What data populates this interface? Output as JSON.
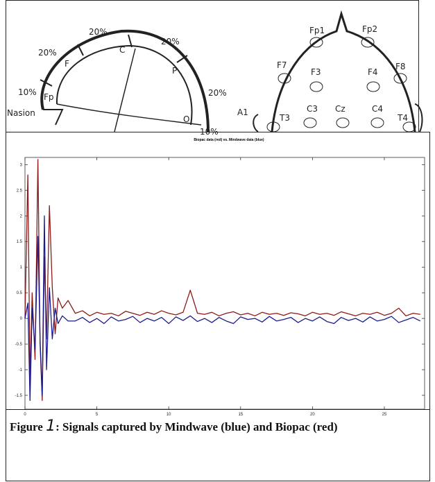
{
  "diagram": {
    "side_labels": [
      "20%",
      "20%",
      "20%",
      "F",
      "C",
      "P",
      "20%",
      "10%",
      "Fp",
      "Nasion",
      "O",
      "10%"
    ],
    "electrodes": [
      "Fp1",
      "Fp2",
      "F7",
      "F3",
      "F4",
      "F8",
      "A1",
      "T3",
      "C3",
      "Cz",
      "C4",
      "T4"
    ]
  },
  "chart_data": {
    "type": "line",
    "title": "Biopac data (red) vs. Mindwave data (blue)",
    "x": [
      0,
      0.2,
      0.35,
      0.5,
      0.7,
      0.9,
      1.05,
      1.2,
      1.35,
      1.5,
      1.7,
      1.9,
      2.1,
      2.3,
      2.6,
      3,
      3.5,
      4,
      4.5,
      5,
      5.5,
      6,
      6.5,
      7,
      7.5,
      8,
      8.5,
      9,
      9.5,
      10,
      10.5,
      11,
      11.5,
      12,
      12.5,
      13,
      13.5,
      14,
      14.5,
      15,
      15.5,
      16,
      16.5,
      17,
      17.5,
      18,
      18.5,
      19,
      19.5,
      20,
      20.5,
      21,
      21.5,
      22,
      22.5,
      23,
      23.5,
      24,
      24.5,
      25,
      25.5,
      26,
      26.5,
      27,
      27.5
    ],
    "series": [
      {
        "color": "#8b1a1a",
        "values": [
          0,
          2.8,
          -1.2,
          0.5,
          -0.8,
          3.1,
          -0.5,
          -1.6,
          1.2,
          -0.4,
          2.2,
          0.6,
          -0.3,
          0.4,
          0.2,
          0.35,
          0.1,
          0.15,
          0.05,
          0.12,
          0.08,
          0.1,
          0.05,
          0.14,
          0.1,
          0.06,
          0.12,
          0.08,
          0.15,
          0.1,
          0.07,
          0.12,
          0.55,
          0.1,
          0.08,
          0.12,
          0.05,
          0.1,
          0.13,
          0.07,
          0.1,
          0.05,
          0.12,
          0.08,
          0.1,
          0.06,
          0.11,
          0.09,
          0.05,
          0.12,
          0.08,
          0.1,
          0.06,
          0.13,
          0.09,
          0.05,
          0.1,
          0.08,
          0.12,
          0.06,
          0.1,
          0.2,
          0.05,
          0.1,
          0.08
        ]
      },
      {
        "color": "#1a1a8c",
        "values": [
          0,
          0.3,
          -1.6,
          0.2,
          -0.6,
          1.6,
          -0.4,
          -1.5,
          2.0,
          -1.0,
          0.6,
          -0.4,
          0.2,
          -0.1,
          0.05,
          -0.05,
          -0.05,
          0.02,
          -0.08,
          0,
          -0.1,
          0.03,
          -0.05,
          -0.02,
          0.04,
          -0.08,
          0,
          -0.05,
          0.02,
          -0.1,
          0.03,
          -0.04,
          0.05,
          -0.06,
          0,
          -0.08,
          0.02,
          -0.05,
          -0.1,
          0.03,
          -0.02,
          0,
          -0.07,
          0.04,
          -0.05,
          -0.02,
          0.02,
          -0.08,
          0,
          -0.05,
          0.03,
          -0.06,
          -0.1,
          0.02,
          -0.04,
          0,
          -0.07,
          0.03,
          -0.05,
          -0.02,
          0.04,
          -0.08,
          -0.03,
          0.02,
          -0.05
        ]
      }
    ],
    "xlim": [
      0,
      27.8
    ],
    "xticks": [
      0,
      5,
      10,
      15,
      20,
      25
    ],
    "ylim": [
      -1.77,
      3.14
    ],
    "yticks": [
      -1.5,
      -1,
      -0.5,
      0,
      0.5,
      1,
      1.5,
      2,
      2.5,
      3
    ]
  },
  "caption": {
    "label": "Figure",
    "number": "1",
    "text": ": Signals captured by Mindwave (blue) and Biopac (red)"
  }
}
